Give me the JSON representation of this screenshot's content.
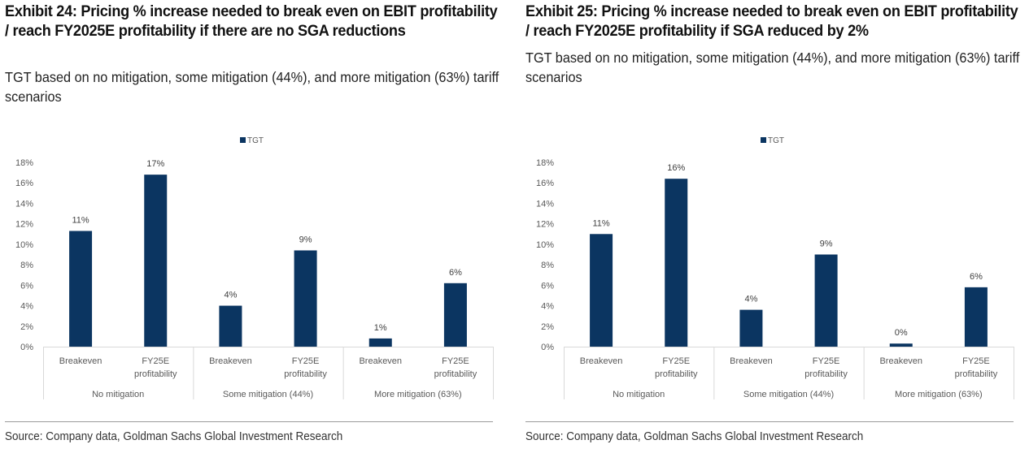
{
  "chart_data": [
    {
      "type": "bar",
      "exhibit": "left",
      "title": "Exhibit 24: Pricing % increase needed to break even on EBIT profitability / reach FY2025E profitability if there are no SGA reductions",
      "subtitle": "TGT based on no mitigation, some mitigation (44%), and more mitigation (63%) tariff scenarios",
      "legend": {
        "entries": [
          "TGT"
        ],
        "placement": "top-center"
      },
      "groups": [
        "No mitigation",
        "Some mitigation (44%)",
        "More mitigation (63%)"
      ],
      "categories": [
        "Breakeven",
        "FY25E profitability",
        "Breakeven",
        "FY25E profitability",
        "Breakeven",
        "FY25E profitability"
      ],
      "category_lines": [
        [
          "Breakeven"
        ],
        [
          "FY25E",
          "profitability"
        ],
        [
          "Breakeven"
        ],
        [
          "FY25E",
          "profitability"
        ],
        [
          "Breakeven"
        ],
        [
          "FY25E",
          "profitability"
        ]
      ],
      "series": [
        {
          "name": "TGT",
          "color": "#0b3561",
          "values": [
            11.3,
            16.8,
            4.0,
            9.4,
            0.8,
            6.2
          ],
          "data_labels": [
            "11%",
            "17%",
            "4%",
            "9%",
            "1%",
            "6%"
          ]
        }
      ],
      "yticks": [
        "0%",
        "2%",
        "4%",
        "6%",
        "8%",
        "10%",
        "12%",
        "14%",
        "16%",
        "18%"
      ],
      "ylim": [
        0,
        18
      ],
      "xlabel": "",
      "ylabel": "",
      "grid": false,
      "source": "Source: Company data, Goldman Sachs Global Investment Research"
    },
    {
      "type": "bar",
      "exhibit": "right",
      "title": "Exhibit 25: Pricing % increase needed to break even on EBIT profitability / reach FY2025E profitability if SGA reduced by 2%",
      "subtitle": "TGT based on no mitigation, some mitigation (44%), and more mitigation (63%) tariff scenarios",
      "legend": {
        "entries": [
          "TGT"
        ],
        "placement": "top-center"
      },
      "groups": [
        "No mitigation",
        "Some mitigation (44%)",
        "More mitigation (63%)"
      ],
      "categories": [
        "Breakeven",
        "FY25E profitability",
        "Breakeven",
        "FY25E profitability",
        "Breakeven",
        "FY25E profitability"
      ],
      "category_lines": [
        [
          "Breakeven"
        ],
        [
          "FY25E",
          "profitability"
        ],
        [
          "Breakeven"
        ],
        [
          "FY25E",
          "profitability"
        ],
        [
          "Breakeven"
        ],
        [
          "FY25E",
          "profitability"
        ]
      ],
      "series": [
        {
          "name": "TGT",
          "color": "#0b3561",
          "values": [
            11.0,
            16.4,
            3.6,
            9.0,
            0.3,
            5.8
          ],
          "data_labels": [
            "11%",
            "16%",
            "4%",
            "9%",
            "0%",
            "6%"
          ]
        }
      ],
      "yticks": [
        "0%",
        "2%",
        "4%",
        "6%",
        "8%",
        "10%",
        "12%",
        "14%",
        "16%",
        "18%"
      ],
      "ylim": [
        0,
        18
      ],
      "xlabel": "",
      "ylabel": "",
      "grid": false,
      "source": "Source: Company data, Goldman Sachs Global Investment Research"
    }
  ]
}
